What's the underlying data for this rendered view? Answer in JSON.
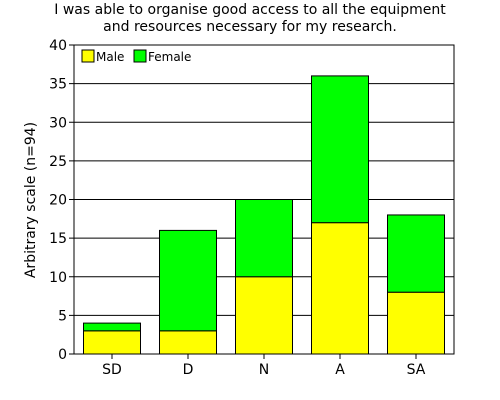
{
  "chart_data": {
    "type": "bar",
    "stacked": true,
    "title_lines": [
      "I was able to organise good access to all the equipment",
      "and resources necessary for my research."
    ],
    "xlabel": "",
    "ylabel": "Arbitrary scale (n=94)",
    "categories": [
      "SD",
      "D",
      "N",
      "A",
      "SA"
    ],
    "series": [
      {
        "name": "Male",
        "values": [
          3,
          3,
          10,
          17,
          8
        ],
        "color": "#ffff00"
      },
      {
        "name": "Female",
        "values": [
          1,
          13,
          10,
          19,
          10
        ],
        "color": "#00ff00"
      }
    ],
    "ylim": [
      0,
      40
    ],
    "yticks": [
      0,
      5,
      10,
      15,
      20,
      25,
      30,
      35,
      40
    ],
    "grid": true,
    "legend_position": "top-left"
  }
}
